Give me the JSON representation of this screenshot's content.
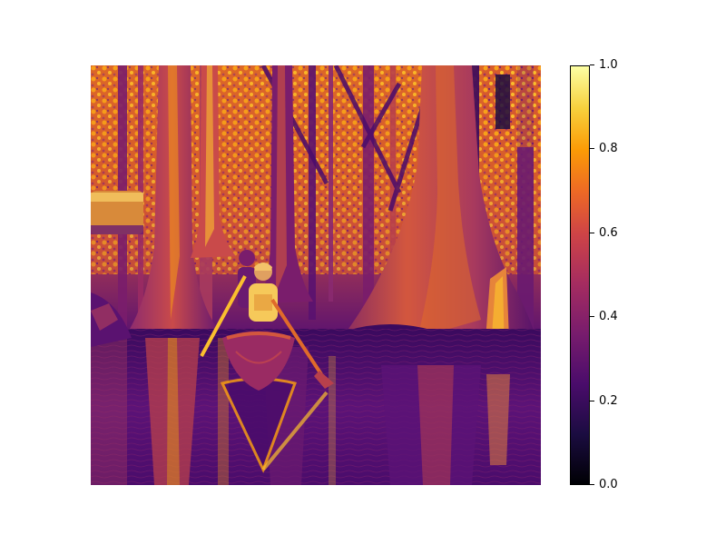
{
  "colorbar": {
    "colormap": "inferno",
    "range": [
      0.0,
      1.0
    ],
    "ticks": [
      {
        "value": 0.0,
        "label": "0.0"
      },
      {
        "value": 0.2,
        "label": "0.2"
      },
      {
        "value": 0.4,
        "label": "0.4"
      },
      {
        "value": 0.6,
        "label": "0.6"
      },
      {
        "value": 0.8,
        "label": "0.8"
      },
      {
        "value": 1.0,
        "label": "1.0"
      }
    ]
  },
  "image": {
    "colormap": "inferno",
    "subject": "two people paddling a canoe through a cypress swamp"
  },
  "colors": {
    "background": "#ffffff",
    "dark": "#1b0c41",
    "mid": "#781c6d",
    "bright": "#fb9b06",
    "highlight": "#fcffa4"
  }
}
